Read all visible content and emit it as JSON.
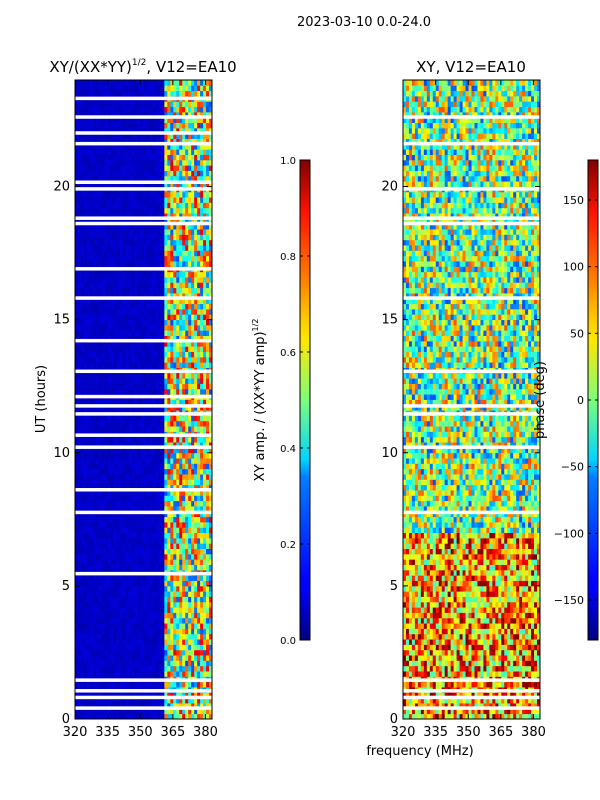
{
  "figure": {
    "suptitle": "2023-03-10 0.0-24.0",
    "xlabel": "frequency (MHz)"
  },
  "chart_data": [
    {
      "type": "heatmap",
      "title_main": "XY/(XX*YY)",
      "title_sup": "1/2",
      "title_tail": ", V12=EA10",
      "xlabel": "",
      "ylabel": "UT (hours)",
      "xlim": [
        320,
        383
      ],
      "ylim": [
        0,
        24
      ],
      "xticks": [
        "320",
        "335",
        "350",
        "365",
        "380"
      ],
      "xtick_values": [
        320,
        335,
        350,
        365,
        380
      ],
      "yticks": [
        "0",
        "5",
        "10",
        "15",
        "20"
      ],
      "ytick_values": [
        0,
        5,
        10,
        15,
        20
      ],
      "colormap": "jet",
      "colorbar": {
        "label_main": "XY amp. / (XX*YY amp)",
        "label_sup": "1/2",
        "range": [
          0.0,
          1.0
        ],
        "ticks": [
          "0.0",
          "0.2",
          "0.4",
          "0.6",
          "0.8",
          "1.0"
        ],
        "tick_values": [
          0.0,
          0.2,
          0.4,
          0.6,
          0.8,
          1.0
        ]
      },
      "description": "Normalized XY amplitude vs frequency and UT; low (~0.05) below 360 MHz, elevated 0.3-0.9 between 360 and 383 MHz",
      "frequency_bands": [
        {
          "from": 320,
          "to": 360,
          "level": 0.05
        },
        {
          "from": 360,
          "to": 383,
          "level": 0.55
        }
      ],
      "flagged_ut_hours": [
        0.4,
        0.8,
        1.05,
        1.45,
        5.45,
        7.75,
        8.6,
        10.2,
        10.65,
        11.45,
        11.75,
        12.1,
        13.05,
        14.2,
        15.8,
        16.9,
        18.6,
        18.8,
        19.9,
        20.15,
        21.6,
        22.0,
        22.6,
        23.3
      ]
    },
    {
      "type": "heatmap",
      "title_main": "XY, V12=EA10",
      "title_sup": "",
      "title_tail": "",
      "xlabel": "frequency (MHz)",
      "ylabel": "",
      "xlim": [
        320,
        383
      ],
      "ylim": [
        0,
        24
      ],
      "xticks": [
        "320",
        "335",
        "350",
        "365",
        "380"
      ],
      "xtick_values": [
        320,
        335,
        350,
        365,
        380
      ],
      "yticks": [
        "0",
        "5",
        "10",
        "15",
        "20"
      ],
      "ytick_values": [
        0,
        5,
        10,
        15,
        20
      ],
      "colormap": "jet",
      "colorbar": {
        "label_main": "phase (deg)",
        "label_sup": "",
        "range": [
          -180,
          180
        ],
        "ticks": [
          "−150",
          "−100",
          "−50",
          "0",
          "50",
          "100",
          "150"
        ],
        "tick_values": [
          -150,
          -100,
          -50,
          0,
          50,
          100,
          150
        ]
      },
      "description": "XY phase vs frequency and UT; mostly 50-150 deg below 7 h, near 0 deg mixed above",
      "flagged_ut_hours": [
        0.4,
        0.8,
        1.05,
        1.45,
        7.75,
        10.2,
        11.45,
        11.75,
        13.05,
        15.8,
        18.6,
        18.8,
        19.9,
        21.6,
        22.6
      ]
    }
  ]
}
